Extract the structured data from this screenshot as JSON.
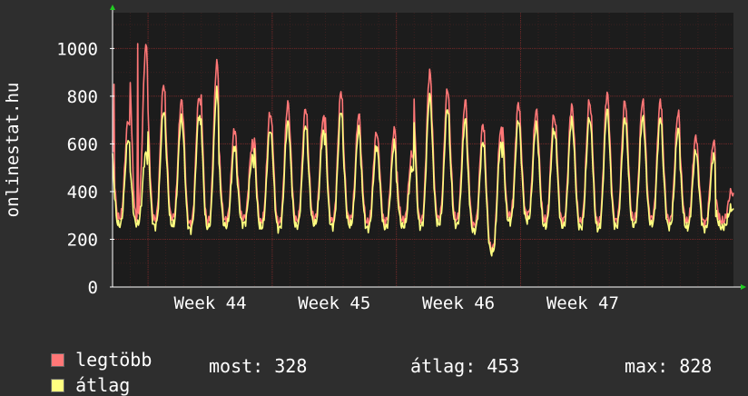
{
  "chart_data": {
    "type": "line",
    "ylabel": "onlinestat.hu",
    "ylim": [
      0,
      1150
    ],
    "yticks": [
      0,
      200,
      400,
      600,
      800,
      1000
    ],
    "xticks": [
      "Week 44",
      "Week 45",
      "Week 46",
      "Week 47"
    ],
    "grid": true,
    "legend_position": "bottom-left",
    "days": 35,
    "series": [
      {
        "name": "legtöbb",
        "color": "#ff7777",
        "daily_min": [
          290,
          295,
          285,
          290,
          265,
          275,
          280,
          290,
          275,
          270,
          280,
          290,
          280,
          285,
          270,
          275,
          280,
          280,
          290,
          285,
          260,
          160,
          300,
          305,
          280,
          280,
          275,
          270,
          280,
          285,
          290,
          280,
          275,
          270,
          275
        ],
        "daily_max": [
          700,
          1010,
          850,
          780,
          800,
          940,
          660,
          600,
          730,
          770,
          750,
          710,
          820,
          720,
          650,
          660,
          560,
          900,
          830,
          780,
          680,
          660,
          770,
          740,
          720,
          760,
          780,
          810,
          780,
          780,
          780,
          730,
          630,
          610,
          400
        ],
        "spikes": [
          [
            0.1,
            850
          ],
          [
            1.4,
            1020
          ]
        ]
      },
      {
        "name": "átlag",
        "color": "#ffff80",
        "daily_min": [
          260,
          265,
          255,
          260,
          240,
          250,
          255,
          265,
          250,
          245,
          255,
          265,
          255,
          260,
          245,
          250,
          255,
          255,
          265,
          260,
          235,
          145,
          275,
          280,
          255,
          255,
          250,
          245,
          255,
          260,
          265,
          255,
          250,
          245,
          250
        ],
        "daily_max": [
          620,
          560,
          740,
          710,
          720,
          820,
          590,
          540,
          660,
          690,
          680,
          650,
          740,
          660,
          590,
          600,
          500,
          800,
          750,
          700,
          610,
          600,
          700,
          680,
          660,
          700,
          710,
          740,
          710,
          710,
          710,
          660,
          570,
          550,
          330
        ]
      }
    ]
  },
  "legend": {
    "items": [
      {
        "label": "legtöbb",
        "color": "#ff7777"
      },
      {
        "label": "átlag",
        "color": "#ffff80"
      }
    ],
    "stats": {
      "current": "most: 328",
      "average": "átlag: 453",
      "max": "max: 828"
    }
  }
}
